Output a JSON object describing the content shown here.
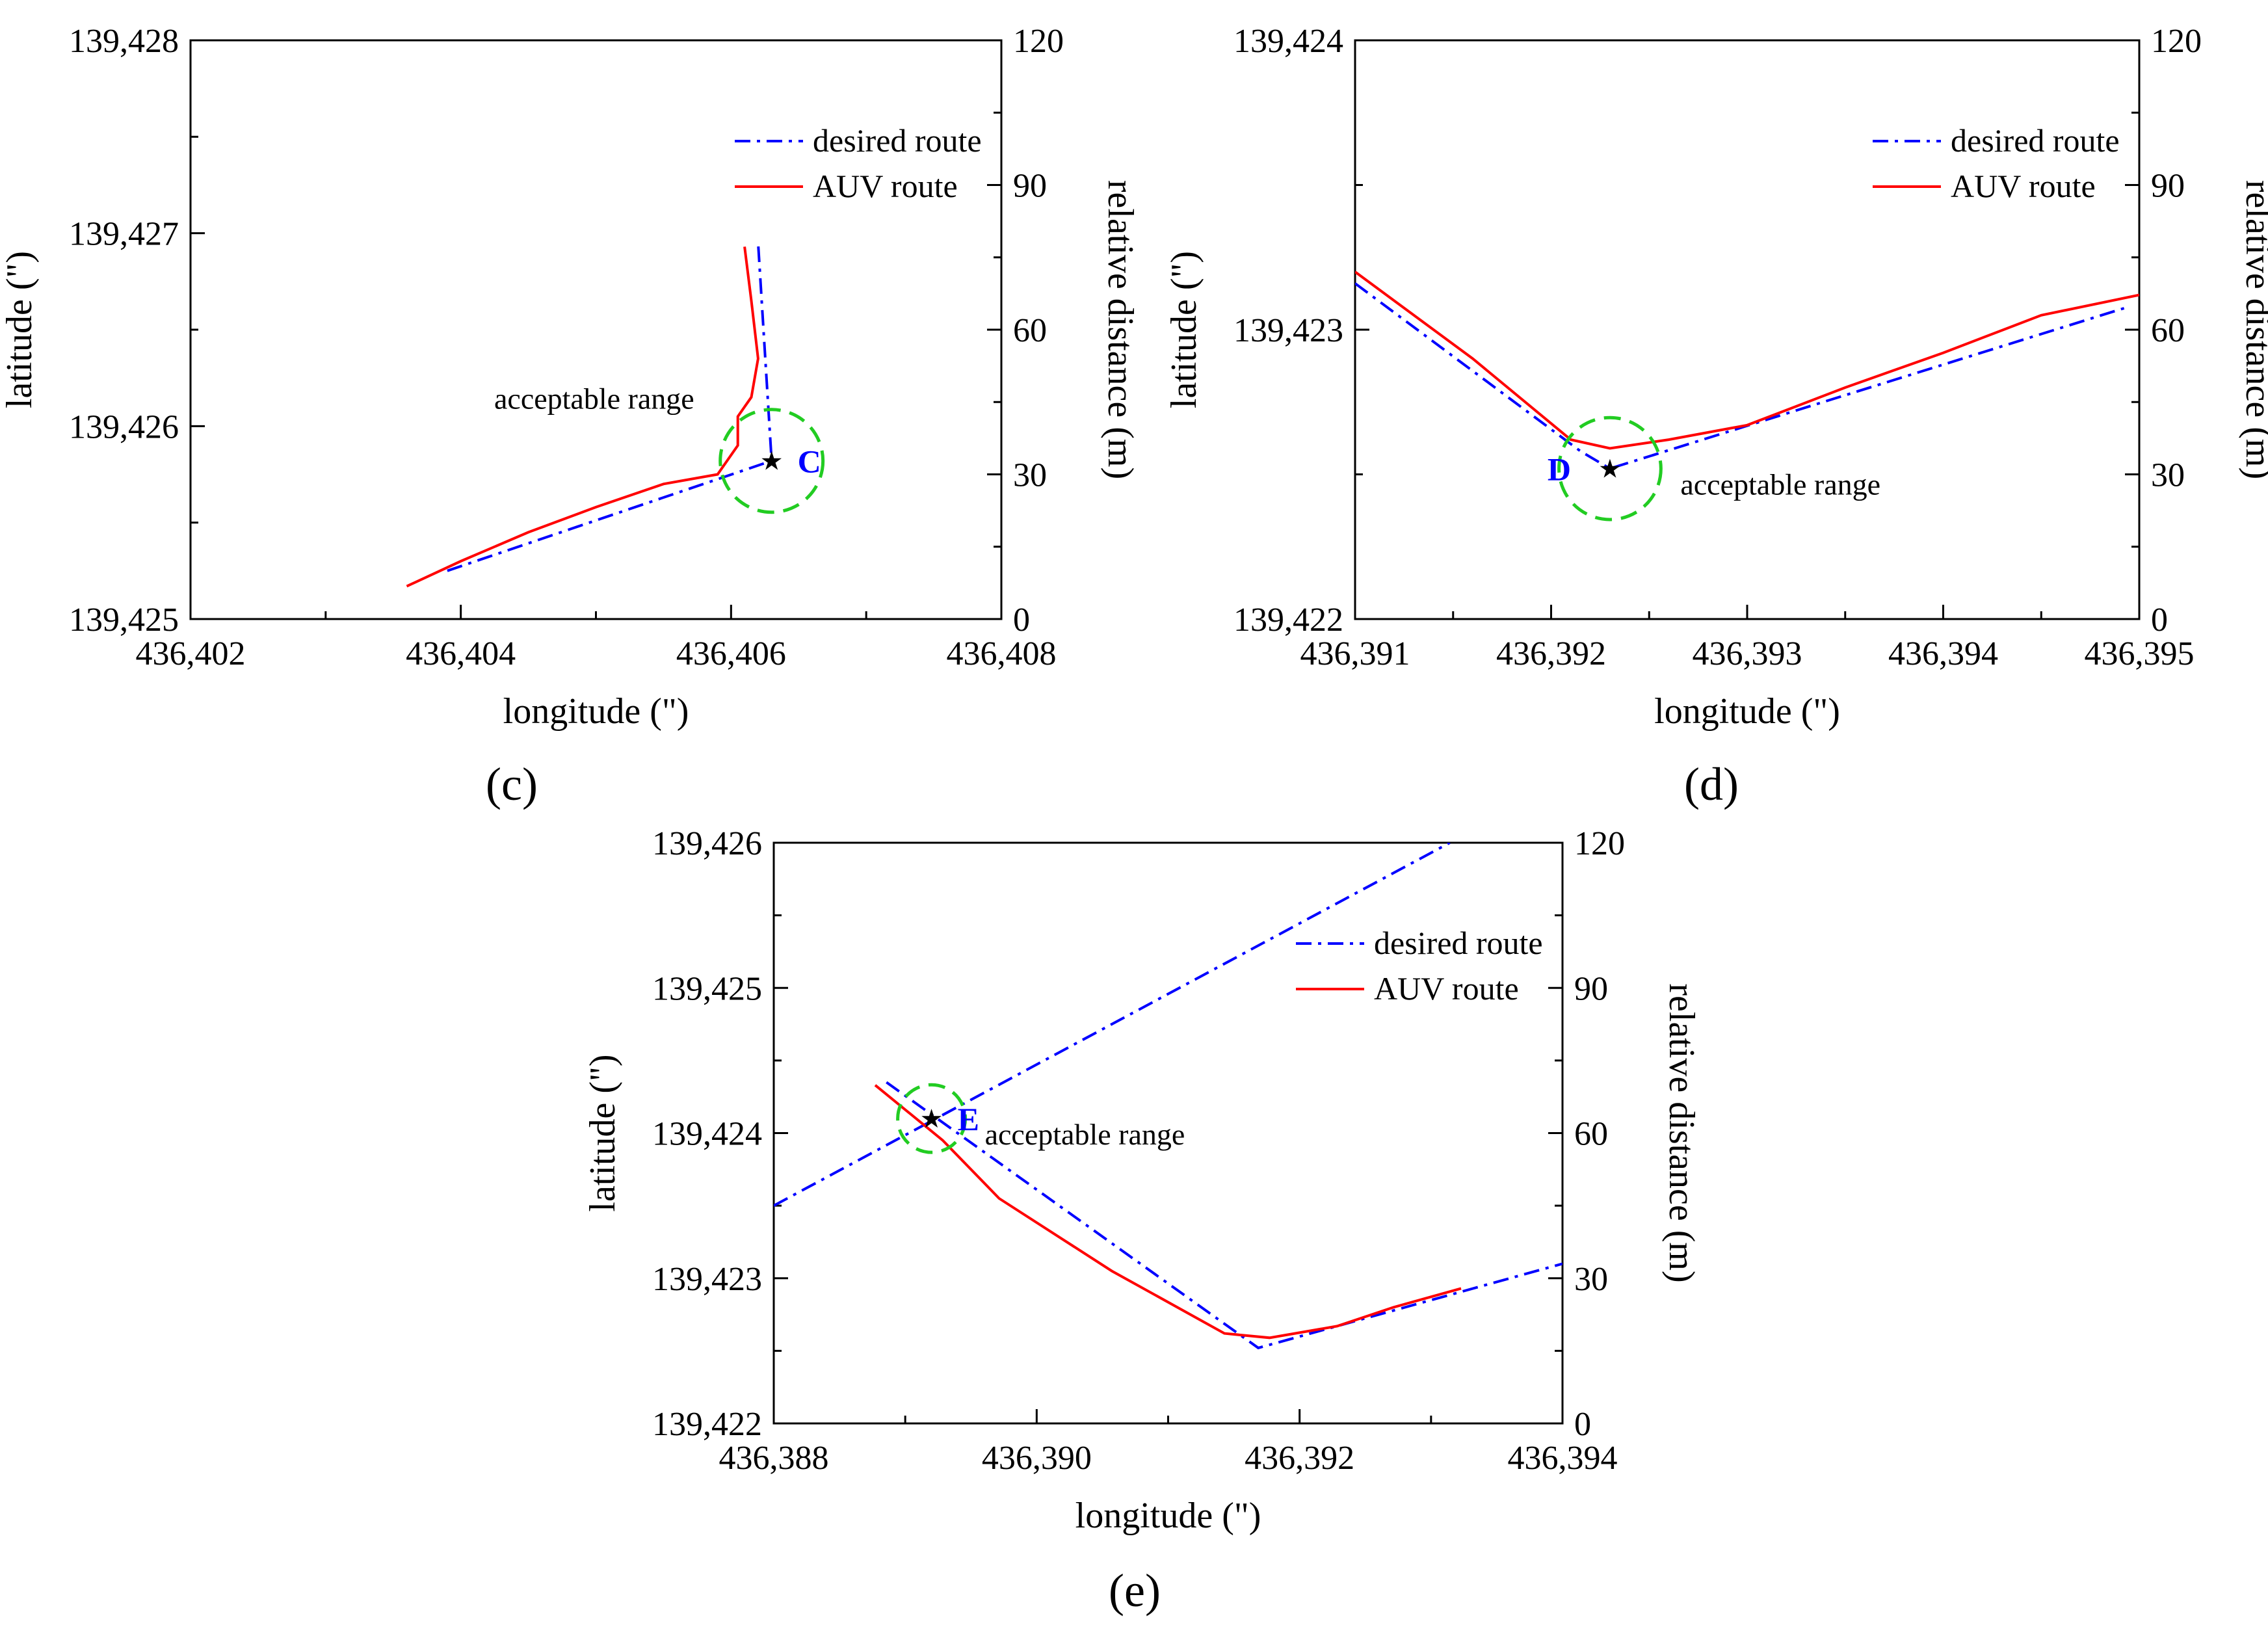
{
  "chart_data": [
    {
      "type": "line",
      "panel_label": "c",
      "xlabel": "longitude (\")",
      "ylabel": "latitude (\")",
      "y2label": "relative distance (m)",
      "xlim": [
        436402,
        436408
      ],
      "ylim": [
        139425,
        139428
      ],
      "y2lim": [
        0,
        120
      ],
      "x_ticks": [
        "436,402",
        "436,404",
        "436,406",
        "436,408"
      ],
      "y_ticks": [
        "139,425",
        "139,426",
        "139,427",
        "139,428"
      ],
      "y2_ticks": [
        "0",
        "30",
        "60",
        "90",
        "120"
      ],
      "legend": [
        "desired route",
        "AUV route"
      ],
      "legend_position": "top-right",
      "series": [
        {
          "name": "desired route",
          "color": "#0000ff",
          "style": "dash-dot",
          "points": [
            [
              436403.9,
              139425.25
            ],
            [
              436406.3,
              139425.82
            ],
            [
              436406.2,
              139426.95
            ]
          ]
        },
        {
          "name": "AUV route",
          "color": "#ff0000",
          "style": "solid",
          "points": [
            [
              436403.6,
              139425.17
            ],
            [
              436404.0,
              139425.3
            ],
            [
              436404.5,
              139425.45
            ],
            [
              436405.0,
              139425.58
            ],
            [
              436405.5,
              139425.7
            ],
            [
              436405.9,
              139425.75
            ],
            [
              436406.05,
              139425.9
            ],
            [
              436406.05,
              139426.05
            ],
            [
              436406.15,
              139426.15
            ],
            [
              436406.2,
              139426.35
            ],
            [
              436406.15,
              139426.65
            ],
            [
              436406.1,
              139426.93
            ]
          ]
        }
      ],
      "waypoint": {
        "label": "C",
        "x": 436406.3,
        "y": 139425.82,
        "range_radius_x": 0.38
      },
      "annotation": "acceptable range"
    },
    {
      "type": "line",
      "panel_label": "d",
      "xlabel": "longitude (\")",
      "ylabel": "latitude (\")",
      "y2label": "relative distance (m)",
      "xlim": [
        436391,
        436395
      ],
      "ylim": [
        139422,
        139424
      ],
      "y2lim": [
        0,
        120
      ],
      "x_ticks": [
        "436,391",
        "436,392",
        "436,393",
        "436,394",
        "436,395"
      ],
      "y_ticks": [
        "139,422",
        "139,423",
        "139,424"
      ],
      "y2_ticks": [
        "0",
        "30",
        "60",
        "90",
        "120"
      ],
      "legend": [
        "desired route",
        "AUV route"
      ],
      "legend_position": "top-right",
      "series": [
        {
          "name": "desired route",
          "color": "#0000ff",
          "style": "dash-dot",
          "points": [
            [
              436391.0,
              139423.16
            ],
            [
              436392.15,
              139422.58
            ],
            [
              436392.3,
              139422.52
            ],
            [
              436394.95,
              139423.08
            ]
          ]
        },
        {
          "name": "AUV route",
          "color": "#ff0000",
          "style": "solid",
          "points": [
            [
              436391.0,
              139423.2
            ],
            [
              436391.6,
              139422.9
            ],
            [
              436392.1,
              139422.62
            ],
            [
              436392.3,
              139422.59
            ],
            [
              436392.6,
              139422.62
            ],
            [
              436393.0,
              139422.67
            ],
            [
              436393.5,
              139422.8
            ],
            [
              436394.0,
              139422.92
            ],
            [
              436394.5,
              139423.05
            ],
            [
              436395.0,
              139423.12
            ]
          ]
        }
      ],
      "waypoint": {
        "label": "D",
        "x": 436392.3,
        "y": 139422.52,
        "range_radius_x": 0.26
      },
      "annotation": "acceptable range"
    },
    {
      "type": "line",
      "panel_label": "e",
      "xlabel": "longitude (\")",
      "ylabel": "latitude (\")",
      "y2label": "relative distance (m)",
      "xlim": [
        436388,
        436395
      ],
      "ylim": [
        139422,
        139426
      ],
      "y2lim": [
        0,
        120
      ],
      "x_ticks": [
        "436,388",
        "436,390",
        "436,392",
        "436,394"
      ],
      "y_ticks": [
        "139,422",
        "139,423",
        "139,424",
        "139,425",
        "139,426"
      ],
      "y2_ticks": [
        "0",
        "30",
        "60",
        "90",
        "120"
      ],
      "legend": [
        "desired route",
        "AUV route"
      ],
      "legend_position": "top-right",
      "series": [
        {
          "name": "desired route",
          "color": "#0000ff",
          "style": "dash-dot",
          "points": [
            [
              436388.0,
              139423.5
            ],
            [
              436394.0,
              139426.0
            ]
          ]
        },
        {
          "name": "desired route",
          "color": "#0000ff",
          "style": "dash-dot",
          "points": [
            [
              436389.0,
              139424.35
            ],
            [
              436392.3,
              139422.52
            ],
            [
              436395.0,
              139423.1
            ]
          ]
        },
        {
          "name": "AUV route",
          "color": "#ff0000",
          "style": "solid",
          "points": [
            [
              436388.9,
              139424.33
            ],
            [
              436389.5,
              139423.95
            ],
            [
              436390.0,
              139423.55
            ],
            [
              436391.0,
              139423.05
            ],
            [
              436392.0,
              139422.62
            ],
            [
              436392.4,
              139422.59
            ],
            [
              436393.0,
              139422.67
            ],
            [
              436393.5,
              139422.8
            ],
            [
              436394.1,
              139422.93
            ]
          ]
        }
      ],
      "waypoint": {
        "label": "E",
        "x": 436389.4,
        "y": 139424.1,
        "range_radius_x": 0.3
      },
      "annotation": "acceptable range"
    }
  ]
}
